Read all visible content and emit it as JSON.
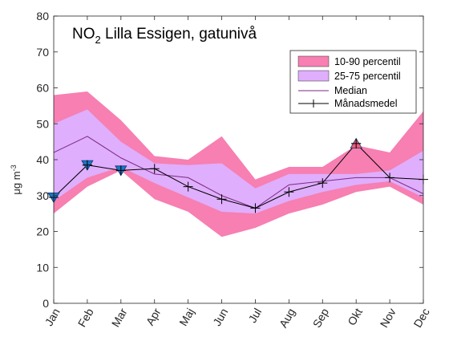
{
  "chart_data": {
    "type": "area",
    "title": {
      "main": "NO",
      "sub": "2",
      "rest": " Lilla Essigen, gatunivå"
    },
    "ylabel": {
      "mu": "μ",
      "unit": "g m",
      "exp": "-3"
    },
    "xlabel": "",
    "categories": [
      "Jan",
      "Feb",
      "Mar",
      "Apr",
      "Maj",
      "Jun",
      "Jul",
      "Aug",
      "Sep",
      "Okt",
      "Nov",
      "Dec"
    ],
    "ylim": [
      0,
      80
    ],
    "yticks": [
      0,
      10,
      20,
      30,
      40,
      50,
      60,
      70,
      80
    ],
    "grid": false,
    "legend_position": "top-right",
    "bands": [
      {
        "name": "10-90 percentil",
        "color": "#f77fb2",
        "upper": [
          58,
          59,
          51,
          41,
          40,
          46.5,
          34.5,
          38,
          38,
          44,
          42,
          53.5
        ],
        "lower": [
          25,
          32.5,
          37,
          29,
          25.5,
          18.5,
          21,
          25,
          27.5,
          31,
          32.5,
          27.5
        ]
      },
      {
        "name": "25-75 percentil",
        "color": "#dfaefc",
        "upper": [
          50,
          54,
          45,
          39,
          38.5,
          39,
          32,
          36,
          36,
          36,
          37,
          42.5
        ],
        "lower": [
          28.5,
          35,
          38,
          33.5,
          29.5,
          25.5,
          25,
          28.5,
          31,
          33,
          34,
          29.5
        ]
      }
    ],
    "series": [
      {
        "name": "Median",
        "color": "#7a2b83",
        "values": [
          42,
          46.5,
          40.5,
          36,
          35,
          30,
          26.5,
          33,
          34,
          35,
          35,
          30.5
        ]
      },
      {
        "name": "Månadsmedel",
        "color": "#000000",
        "values": [
          29.5,
          38.5,
          37,
          37.5,
          32.5,
          29,
          26.5,
          31,
          33.5,
          44.5,
          35,
          34.5
        ],
        "markers": [
          {
            "month": "Jan",
            "shape": "triangle-down",
            "color": "#1f73c4"
          },
          {
            "month": "Feb",
            "shape": "triangle-down",
            "color": "#1f73c4"
          },
          {
            "month": "Mar",
            "shape": "triangle-down",
            "color": "#1f73c4"
          },
          {
            "month": "Okt",
            "shape": "triangle-up",
            "color": "#f75a78"
          }
        ]
      }
    ]
  }
}
